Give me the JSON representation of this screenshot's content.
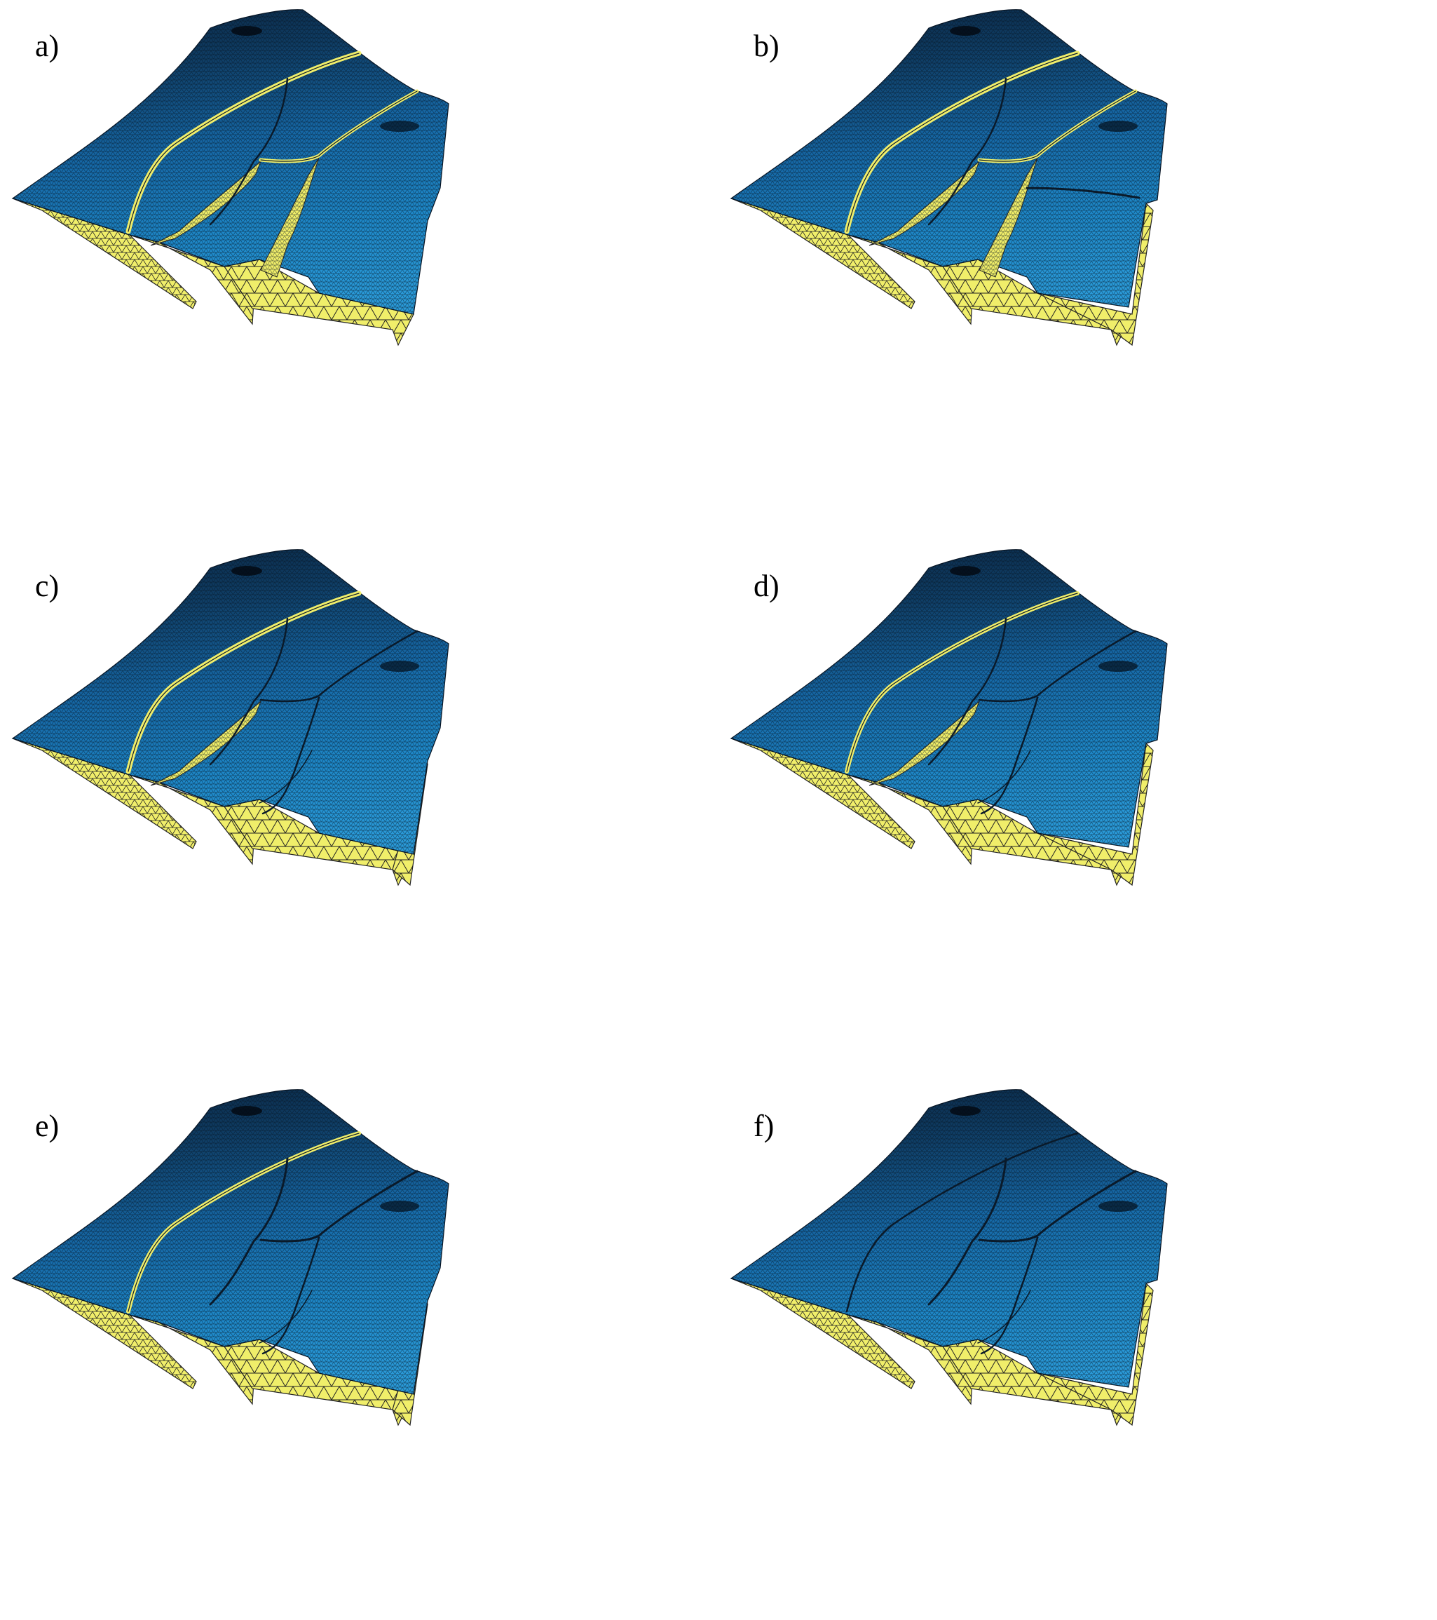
{
  "figure": {
    "panels": [
      {
        "id": "a",
        "label": "a)",
        "variant": "a"
      },
      {
        "id": "b",
        "label": "b)",
        "variant": "b"
      },
      {
        "id": "c",
        "label": "c)",
        "variant": "c"
      },
      {
        "id": "d",
        "label": "d)",
        "variant": "d"
      },
      {
        "id": "e",
        "label": "e)",
        "variant": "e"
      },
      {
        "id": "f",
        "label": "f)",
        "variant": "f"
      }
    ],
    "colors": {
      "surface_blue": "#1e88c8",
      "surface_dark": "#0b2a48",
      "fault_yellow": "#f0ee6a",
      "mesh_line": "#000000"
    }
  }
}
